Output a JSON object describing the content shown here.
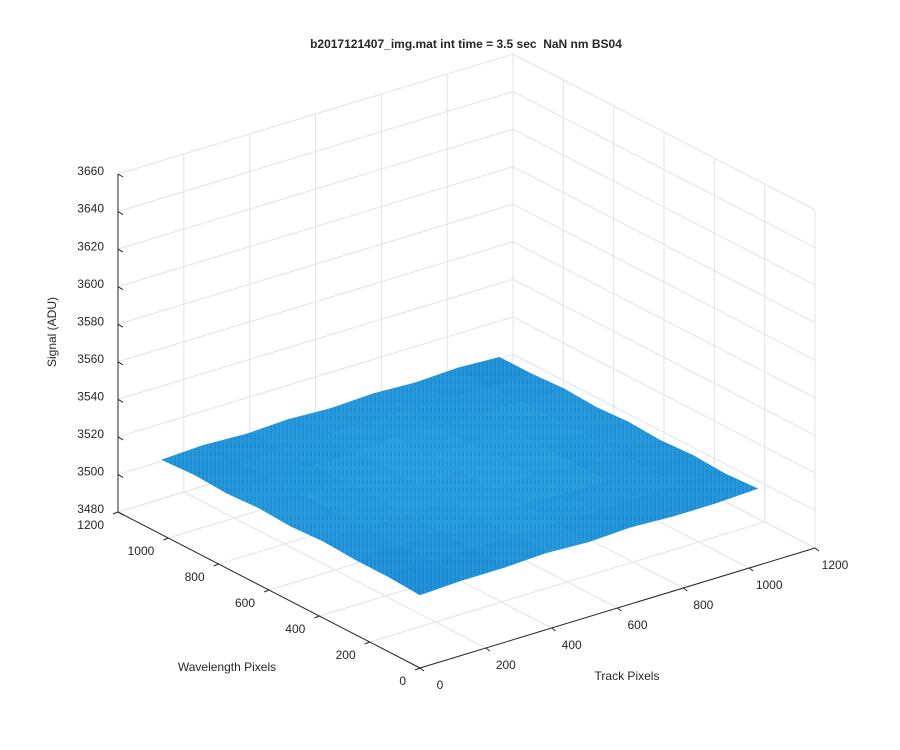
{
  "chart_data": {
    "type": "surface",
    "title": "b2017121407_img.mat int time = 3.5 sec  NaN nm BS04",
    "xlabel": "Track Pixels",
    "ylabel": "Wavelength Pixels",
    "zlabel": "Signal (ADU)",
    "xlim": [
      0,
      1200
    ],
    "ylim": [
      0,
      1200
    ],
    "zlim": [
      3480,
      3660
    ],
    "xticks": [
      0,
      200,
      400,
      600,
      800,
      1000,
      1200
    ],
    "yticks": [
      0,
      200,
      400,
      600,
      800,
      1000,
      1200
    ],
    "zticks": [
      3480,
      3500,
      3520,
      3540,
      3560,
      3580,
      3600,
      3620,
      3640,
      3660
    ],
    "grid": true,
    "color": "#1b8bd8",
    "x": [
      0,
      128,
      256,
      384,
      512,
      640,
      768,
      896,
      1024
    ],
    "y": [
      0,
      128,
      256,
      384,
      512,
      640,
      768,
      896,
      1024
    ],
    "z": [
      [
        3519,
        3520,
        3520,
        3521,
        3520,
        3521,
        3520,
        3520,
        3521
      ],
      [
        3520,
        3521,
        3520,
        3521,
        3521,
        3520,
        3521,
        3521,
        3520
      ],
      [
        3520,
        3520,
        3521,
        3521,
        3522,
        3521,
        3521,
        3520,
        3521
      ],
      [
        3521,
        3521,
        3521,
        3522,
        3521,
        3522,
        3521,
        3521,
        3520
      ],
      [
        3520,
        3521,
        3522,
        3521,
        3522,
        3522,
        3521,
        3521,
        3521
      ],
      [
        3521,
        3521,
        3521,
        3522,
        3522,
        3521,
        3522,
        3521,
        3520
      ],
      [
        3520,
        3521,
        3521,
        3521,
        3522,
        3521,
        3521,
        3521,
        3521
      ],
      [
        3521,
        3520,
        3521,
        3521,
        3521,
        3521,
        3521,
        3520,
        3520
      ],
      [
        3520,
        3521,
        3520,
        3521,
        3520,
        3521,
        3520,
        3521,
        3520
      ]
    ]
  }
}
